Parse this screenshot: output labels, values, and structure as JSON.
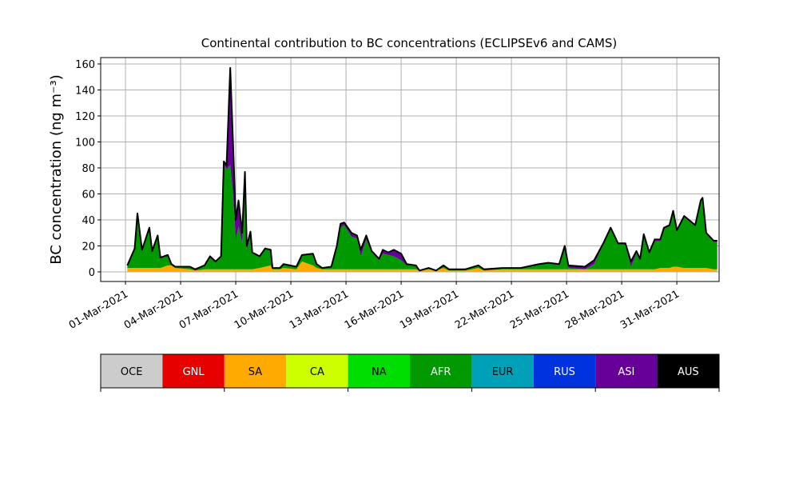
{
  "chart_data": {
    "type": "stacked_area",
    "title": "Continental contribution to BC concentrations (ECLIPSEv6 and CAMS)",
    "y_label": "BC concentration (ng m⁻³)",
    "x": [
      0.1,
      0.5,
      0.65,
      0.9,
      1.3,
      1.45,
      1.75,
      1.9,
      2.3,
      2.5,
      2.7,
      3.5,
      3.8,
      4.3,
      4.6,
      4.9,
      5.2,
      5.35,
      5.5,
      5.7,
      5.85,
      6.0,
      6.15,
      6.35,
      6.5,
      6.6,
      6.8,
      6.9,
      7.3,
      7.6,
      7.9,
      8.0,
      8.4,
      8.6,
      9.3,
      9.6,
      10.2,
      10.4,
      10.7,
      11.2,
      11.5,
      11.7,
      11.9,
      12.3,
      12.6,
      12.8,
      13.1,
      13.4,
      13.8,
      14.0,
      14.3,
      14.6,
      15.0,
      15.3,
      15.8,
      16.0,
      16.5,
      16.9,
      17.3,
      17.6,
      18.5,
      19.2,
      19.5,
      20.5,
      21.5,
      22.5,
      23.0,
      23.6,
      23.9,
      24.1,
      25.0,
      25.5,
      26.0,
      26.4,
      26.8,
      27.2,
      27.5,
      27.8,
      28.0,
      28.2,
      28.5,
      28.8,
      29.1,
      29.3,
      29.6,
      29.8,
      30.0,
      30.4,
      31.0,
      31.3,
      31.4,
      31.6,
      32.0,
      32.2
    ],
    "series": [
      {
        "name": "SA",
        "color": "#ffaa00",
        "values": [
          3,
          3,
          3,
          3,
          3,
          3,
          3,
          3,
          5,
          5,
          3,
          2,
          1,
          2,
          2,
          2,
          2,
          2,
          2,
          2,
          2,
          2,
          2,
          2,
          2,
          2,
          2,
          2,
          3,
          4,
          5,
          2,
          2,
          3,
          2,
          8,
          5,
          3,
          2,
          2,
          2,
          2,
          2,
          2,
          2,
          2,
          2,
          2,
          2,
          2,
          2,
          2,
          2,
          2,
          2,
          1,
          2,
          1,
          3,
          1,
          1,
          3,
          1,
          2,
          2,
          2,
          2,
          2,
          2,
          2,
          2,
          2,
          2,
          2,
          2,
          2,
          2,
          2,
          2,
          2,
          2,
          2,
          3,
          3,
          3,
          4,
          4,
          3,
          3,
          3,
          3,
          3,
          2,
          2
        ]
      },
      {
        "name": "AFR",
        "color": "#009900",
        "values": [
          2,
          15,
          41,
          14,
          31,
          13,
          25,
          8,
          8,
          1,
          1,
          2,
          0,
          3,
          10,
          6,
          10,
          81,
          77,
          80,
          58,
          23,
          33,
          20,
          65,
          15,
          26,
          12,
          9,
          14,
          12,
          1,
          1,
          3,
          2,
          5,
          9,
          3,
          1,
          2,
          17,
          32,
          34,
          25,
          24,
          10,
          23,
          13,
          7,
          12,
          11,
          10,
          7,
          3,
          3,
          0,
          1,
          0,
          2,
          1,
          1,
          2,
          1,
          1,
          1,
          4,
          5,
          3,
          15,
          1,
          0,
          4,
          19,
          31,
          19,
          19,
          2,
          12,
          7,
          26,
          12,
          22,
          21,
          30,
          32,
          42,
          27,
          39,
          32,
          51,
          53,
          26,
          21,
          21
        ]
      },
      {
        "name": "ASI",
        "color": "#660099",
        "values": [
          0,
          0,
          1,
          0,
          0,
          0,
          0,
          0,
          0,
          0,
          0,
          0,
          1,
          0,
          0,
          0,
          0,
          2,
          3,
          75,
          40,
          15,
          20,
          8,
          10,
          3,
          3,
          1,
          0,
          0,
          0,
          0,
          0,
          0,
          0,
          0,
          0,
          0,
          0,
          0,
          1,
          3,
          2,
          3,
          2,
          5,
          3,
          1,
          1,
          3,
          2,
          5,
          5,
          1,
          0,
          0,
          0,
          0,
          0,
          0,
          0,
          0,
          0,
          0,
          0,
          0,
          0,
          1,
          3,
          2,
          2,
          3,
          1,
          1,
          1,
          1,
          4,
          2,
          1,
          1,
          1,
          1,
          1,
          1,
          1,
          1,
          1,
          1,
          1,
          1,
          1,
          1,
          1,
          1
        ]
      }
    ],
    "xlim": [
      -1.35,
      32.3
    ],
    "xticks": [
      {
        "value": 0,
        "label": "01-Mar-2021"
      },
      {
        "value": 3,
        "label": "04-Mar-2021"
      },
      {
        "value": 6,
        "label": "07-Mar-2021"
      },
      {
        "value": 9,
        "label": "10-Mar-2021"
      },
      {
        "value": 12,
        "label": "13-Mar-2021"
      },
      {
        "value": 15,
        "label": "16-Mar-2021"
      },
      {
        "value": 18,
        "label": "19-Mar-2021"
      },
      {
        "value": 21,
        "label": "22-Mar-2021"
      },
      {
        "value": 24,
        "label": "25-Mar-2021"
      },
      {
        "value": 27,
        "label": "28-Mar-2021"
      },
      {
        "value": 30,
        "label": "31-Mar-2021"
      }
    ],
    "ylim": [
      -7.4,
      164.9
    ],
    "yticks": [
      0,
      20,
      40,
      60,
      80,
      100,
      120,
      140,
      160
    ],
    "grid": true,
    "colorbar": {
      "labels": [
        "OCE",
        "GNL",
        "SA",
        "CA",
        "NA",
        "AFR",
        "EUR",
        "RUS",
        "ASI",
        "AUS"
      ],
      "colors": [
        "#cccccc",
        "#e60000",
        "#ffaa00",
        "#ccff00",
        "#00dd00",
        "#009900",
        "#00a0b8",
        "#0033dd",
        "#660099",
        "#000000"
      ]
    }
  }
}
